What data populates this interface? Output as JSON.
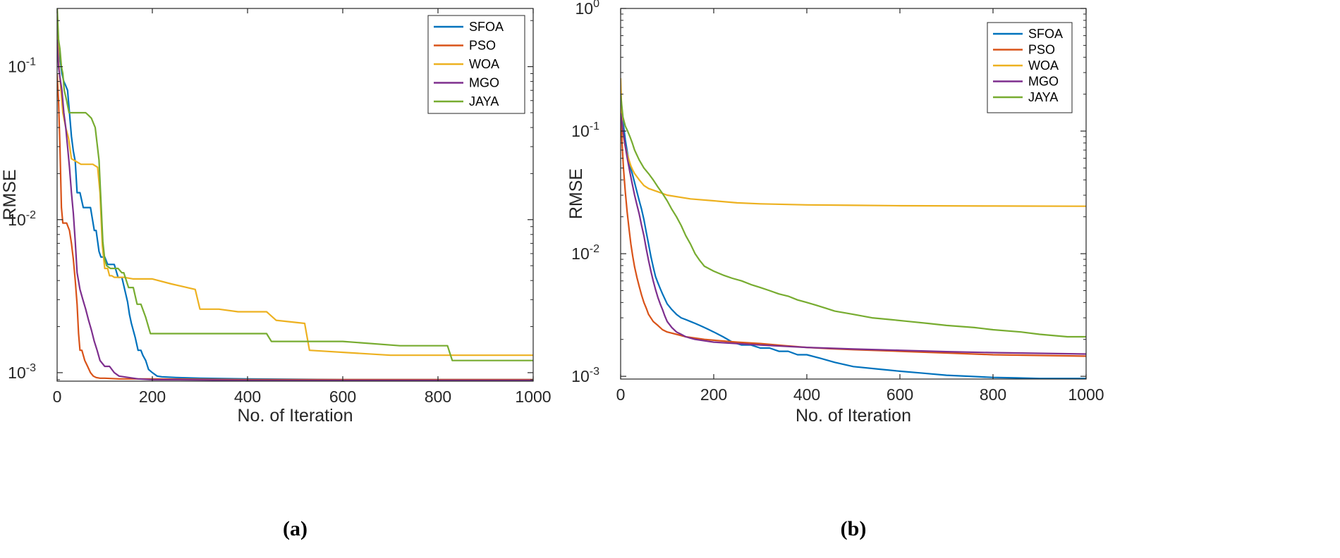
{
  "chart_data": [
    {
      "type": "line",
      "panel_label": "(a)",
      "xlabel": "No. of Iteration",
      "ylabel": "RMSE",
      "yscale": "log",
      "xlim": [
        0,
        1000
      ],
      "ylim": [
        0.00088,
        0.24
      ],
      "x_ticks": [
        0,
        200,
        400,
        600,
        800,
        1000
      ],
      "x_tick_labels": [
        "0",
        "200",
        "400",
        "600",
        "800",
        "1000"
      ],
      "y_ticks": [
        0.001,
        0.01,
        0.1
      ],
      "y_tick_labels": [
        {
          "base": "10",
          "exp": "-3"
        },
        {
          "base": "10",
          "exp": "-2"
        },
        {
          "base": "10",
          "exp": "-1"
        }
      ],
      "legend_position": "top-right",
      "grid": false,
      "series": [
        {
          "name": "SFOA",
          "color": "#0072BD",
          "x": [
            0,
            5,
            10,
            14,
            18,
            22,
            26,
            30,
            34,
            38,
            42,
            48,
            55,
            62,
            70,
            78,
            82,
            88,
            92,
            100,
            106,
            112,
            120,
            128,
            136,
            148,
            152,
            156,
            164,
            170,
            176,
            180,
            186,
            192,
            200,
            210,
            220,
            250,
            300,
            400,
            600,
            800,
            1000
          ],
          "y": [
            0.2,
            0.12,
            0.09,
            0.08,
            0.075,
            0.07,
            0.05,
            0.035,
            0.028,
            0.024,
            0.015,
            0.015,
            0.012,
            0.012,
            0.012,
            0.0085,
            0.0085,
            0.0062,
            0.0057,
            0.0057,
            0.0051,
            0.0051,
            0.0051,
            0.0042,
            0.0042,
            0.0029,
            0.0024,
            0.0021,
            0.0017,
            0.0014,
            0.0014,
            0.0013,
            0.0012,
            0.00105,
            0.001,
            0.00095,
            0.00094,
            0.00093,
            0.00092,
            0.00091,
            0.0009,
            0.0009,
            0.0009
          ]
        },
        {
          "name": "PSO",
          "color": "#D95319",
          "x": [
            0,
            3,
            6,
            9,
            12,
            20,
            26,
            30,
            34,
            38,
            42,
            45,
            48,
            52,
            58,
            64,
            70,
            76,
            82,
            90,
            100,
            130,
            200,
            400,
            700,
            1000
          ],
          "y": [
            0.09,
            0.06,
            0.03,
            0.012,
            0.0095,
            0.0095,
            0.0085,
            0.007,
            0.0055,
            0.004,
            0.0028,
            0.0018,
            0.0014,
            0.0014,
            0.0012,
            0.0011,
            0.001,
            0.00095,
            0.00093,
            0.00092,
            0.00092,
            0.00091,
            0.00091,
            0.0009,
            0.0009,
            0.0009
          ]
        },
        {
          "name": "WOA",
          "color": "#EDB120",
          "x": [
            0,
            4,
            8,
            12,
            18,
            24,
            30,
            40,
            50,
            60,
            75,
            85,
            90,
            95,
            100,
            106,
            110,
            115,
            120,
            135,
            140,
            160,
            200,
            240,
            290,
            300,
            340,
            380,
            440,
            460,
            520,
            530,
            700,
            840,
            1000
          ],
          "y": [
            0.2,
            0.1,
            0.07,
            0.05,
            0.04,
            0.034,
            0.025,
            0.024,
            0.023,
            0.023,
            0.023,
            0.022,
            0.015,
            0.0068,
            0.0048,
            0.0048,
            0.0043,
            0.0043,
            0.0042,
            0.0042,
            0.0042,
            0.0041,
            0.0041,
            0.0038,
            0.0035,
            0.0026,
            0.0026,
            0.0025,
            0.0025,
            0.0022,
            0.0021,
            0.0014,
            0.0013,
            0.0013,
            0.0013
          ]
        },
        {
          "name": "MGO",
          "color": "#7E2F8E",
          "x": [
            0,
            3,
            6,
            10,
            14,
            18,
            22,
            26,
            30,
            34,
            38,
            42,
            48,
            54,
            60,
            66,
            72,
            78,
            84,
            90,
            100,
            110,
            120,
            130,
            150,
            170,
            200,
            250,
            400,
            700,
            1000
          ],
          "y": [
            0.15,
            0.1,
            0.085,
            0.07,
            0.05,
            0.04,
            0.03,
            0.022,
            0.015,
            0.011,
            0.0072,
            0.0045,
            0.0035,
            0.003,
            0.0026,
            0.0022,
            0.0019,
            0.0016,
            0.0014,
            0.0012,
            0.0011,
            0.0011,
            0.001,
            0.00095,
            0.00093,
            0.00091,
            0.0009,
            0.0009,
            0.00089,
            0.00089,
            0.00089
          ]
        },
        {
          "name": "JAYA",
          "color": "#77AC30",
          "x": [
            0,
            3,
            6,
            9,
            12,
            15,
            20,
            25,
            30,
            35,
            40,
            45,
            50,
            55,
            60,
            66,
            72,
            80,
            88,
            96,
            100,
            104,
            112,
            120,
            128,
            136,
            140,
            150,
            160,
            168,
            176,
            186,
            196,
            236,
            300,
            400,
            440,
            450,
            480,
            600,
            720,
            820,
            830,
            1000
          ],
          "y": [
            0.25,
            0.15,
            0.13,
            0.1,
            0.09,
            0.07,
            0.06,
            0.05,
            0.05,
            0.05,
            0.05,
            0.05,
            0.05,
            0.05,
            0.05,
            0.048,
            0.046,
            0.04,
            0.0245,
            0.0072,
            0.0055,
            0.005,
            0.0048,
            0.0048,
            0.0048,
            0.0045,
            0.0045,
            0.0036,
            0.0036,
            0.0028,
            0.0028,
            0.0023,
            0.0018,
            0.0018,
            0.0018,
            0.0018,
            0.0018,
            0.0016,
            0.0016,
            0.0016,
            0.0015,
            0.0015,
            0.0012,
            0.0012
          ]
        }
      ]
    },
    {
      "type": "line",
      "panel_label": "(b)",
      "xlabel": "No. of Iteration",
      "ylabel": "RMSE",
      "yscale": "log",
      "xlim": [
        0,
        1000
      ],
      "ylim": [
        0.00095,
        1
      ],
      "x_ticks": [
        0,
        200,
        400,
        600,
        800,
        1000
      ],
      "x_tick_labels": [
        "0",
        "200",
        "400",
        "600",
        "800",
        "1000"
      ],
      "y_ticks": [
        0.001,
        0.01,
        0.1,
        1
      ],
      "y_tick_labels": [
        {
          "base": "10",
          "exp": "-3"
        },
        {
          "base": "10",
          "exp": "-2"
        },
        {
          "base": "10",
          "exp": "-1"
        },
        {
          "base": "10",
          "exp": "0"
        }
      ],
      "legend_position": "top-right",
      "grid": false,
      "series": [
        {
          "name": "SFOA",
          "color": "#0072BD",
          "x": [
            0,
            5,
            10,
            15,
            20,
            25,
            30,
            35,
            40,
            45,
            50,
            55,
            60,
            65,
            70,
            75,
            80,
            85,
            90,
            100,
            110,
            120,
            130,
            140,
            150,
            160,
            170,
            180,
            190,
            200,
            220,
            240,
            260,
            280,
            300,
            320,
            340,
            360,
            380,
            400,
            430,
            460,
            500,
            550,
            600,
            650,
            700,
            750,
            800,
            850,
            900,
            950,
            1000
          ],
          "y": [
            0.19,
            0.12,
            0.085,
            0.065,
            0.052,
            0.045,
            0.038,
            0.032,
            0.027,
            0.023,
            0.019,
            0.015,
            0.012,
            0.0095,
            0.0078,
            0.0065,
            0.0058,
            0.0052,
            0.0047,
            0.0039,
            0.0035,
            0.0032,
            0.003,
            0.0029,
            0.0028,
            0.0027,
            0.0026,
            0.0025,
            0.0024,
            0.0023,
            0.0021,
            0.0019,
            0.0018,
            0.0018,
            0.0017,
            0.0017,
            0.0016,
            0.0016,
            0.0015,
            0.0015,
            0.0014,
            0.0013,
            0.0012,
            0.00115,
            0.0011,
            0.00106,
            0.00102,
            0.001,
            0.00098,
            0.00097,
            0.00096,
            0.00096,
            0.00096
          ]
        },
        {
          "name": "PSO",
          "color": "#D95319",
          "x": [
            0,
            3,
            6,
            10,
            14,
            18,
            22,
            26,
            30,
            35,
            40,
            45,
            50,
            55,
            60,
            70,
            80,
            90,
            100,
            120,
            140,
            160,
            180,
            200,
            250,
            300,
            350,
            400,
            450,
            500,
            600,
            700,
            800,
            900,
            1000
          ],
          "y": [
            0.15,
            0.08,
            0.05,
            0.032,
            0.022,
            0.016,
            0.012,
            0.0095,
            0.0078,
            0.0064,
            0.0054,
            0.0046,
            0.004,
            0.0036,
            0.0032,
            0.0028,
            0.0026,
            0.0024,
            0.0023,
            0.0022,
            0.0021,
            0.00205,
            0.002,
            0.00197,
            0.0019,
            0.00185,
            0.00178,
            0.00172,
            0.00168,
            0.00165,
            0.0016,
            0.00155,
            0.0015,
            0.00148,
            0.00146
          ]
        },
        {
          "name": "WOA",
          "color": "#EDB120",
          "x": [
            0,
            3,
            6,
            10,
            14,
            18,
            22,
            26,
            30,
            40,
            50,
            60,
            80,
            100,
            150,
            200,
            250,
            300,
            400,
            500,
            600,
            800,
            1000
          ],
          "y": [
            0.27,
            0.12,
            0.09,
            0.075,
            0.065,
            0.058,
            0.052,
            0.048,
            0.045,
            0.04,
            0.036,
            0.034,
            0.032,
            0.03,
            0.028,
            0.027,
            0.026,
            0.0255,
            0.025,
            0.0248,
            0.0246,
            0.0245,
            0.0244
          ]
        },
        {
          "name": "MGO",
          "color": "#7E2F8E",
          "x": [
            0,
            5,
            10,
            15,
            20,
            25,
            30,
            35,
            40,
            45,
            50,
            55,
            60,
            65,
            70,
            75,
            80,
            85,
            90,
            95,
            100,
            110,
            120,
            130,
            140,
            150,
            160,
            180,
            200,
            250,
            300,
            400,
            500,
            600,
            700,
            800,
            900,
            1000
          ],
          "y": [
            0.14,
            0.1,
            0.075,
            0.058,
            0.046,
            0.037,
            0.03,
            0.025,
            0.021,
            0.017,
            0.014,
            0.011,
            0.0088,
            0.0072,
            0.006,
            0.0051,
            0.0044,
            0.0039,
            0.0035,
            0.0031,
            0.0028,
            0.0025,
            0.0023,
            0.0022,
            0.0021,
            0.00205,
            0.002,
            0.00195,
            0.0019,
            0.00185,
            0.0018,
            0.00172,
            0.00167,
            0.00163,
            0.00159,
            0.00156,
            0.00154,
            0.00152
          ]
        },
        {
          "name": "JAYA",
          "color": "#77AC30",
          "x": [
            0,
            5,
            10,
            15,
            20,
            25,
            30,
            40,
            50,
            60,
            70,
            80,
            90,
            100,
            110,
            120,
            130,
            140,
            150,
            160,
            170,
            180,
            200,
            220,
            240,
            260,
            280,
            300,
            320,
            340,
            360,
            380,
            400,
            420,
            440,
            460,
            500,
            540,
            580,
            620,
            660,
            700,
            760,
            800,
            860,
            900,
            960,
            1000
          ],
          "y": [
            0.2,
            0.13,
            0.11,
            0.1,
            0.09,
            0.08,
            0.07,
            0.058,
            0.05,
            0.045,
            0.04,
            0.035,
            0.031,
            0.027,
            0.023,
            0.02,
            0.017,
            0.014,
            0.012,
            0.01,
            0.0088,
            0.0079,
            0.0072,
            0.0067,
            0.0063,
            0.006,
            0.0056,
            0.0053,
            0.005,
            0.0047,
            0.0045,
            0.0042,
            0.004,
            0.0038,
            0.0036,
            0.0034,
            0.0032,
            0.003,
            0.0029,
            0.0028,
            0.0027,
            0.0026,
            0.0025,
            0.0024,
            0.0023,
            0.0022,
            0.0021,
            0.0021
          ]
        }
      ]
    }
  ]
}
